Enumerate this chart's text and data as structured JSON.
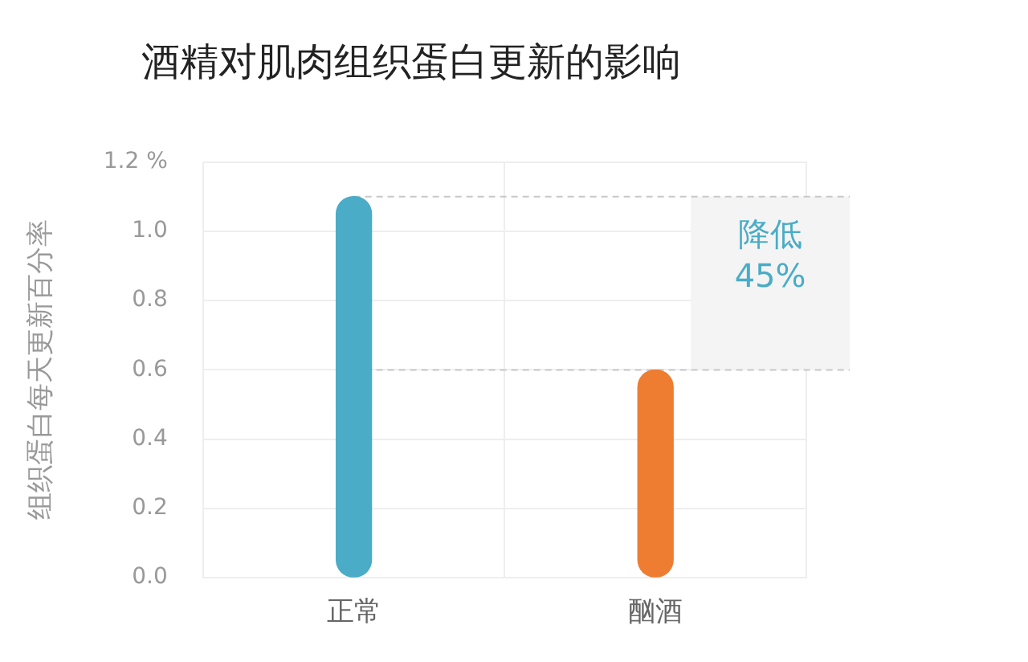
{
  "chart_data": {
    "type": "bar",
    "title": "酒精对肌肉组织蛋白更新的影响",
    "ylabel": "组织蛋白每天更新百分率",
    "categories": [
      "正常",
      "酗酒"
    ],
    "values": [
      1.1,
      0.6
    ],
    "colors": [
      "#4aacc6",
      "#ee7d31"
    ],
    "ylim": [
      0,
      1.2
    ],
    "yticks": [
      {
        "value": 0,
        "label": "0.0"
      },
      {
        "value": 0.2,
        "label": "0.2"
      },
      {
        "value": 0.4,
        "label": "0.4"
      },
      {
        "value": 0.6,
        "label": "0.6"
      },
      {
        "value": 0.8,
        "label": "0.8"
      },
      {
        "value": 1,
        "label": "1.0"
      },
      {
        "value": 1.2,
        "label": "1.2 %"
      }
    ],
    "grid": true,
    "legend": false,
    "ref_lines": [
      {
        "axis": "y",
        "value": 1.1,
        "color": "#c8c8c8",
        "line_style": "dashed"
      },
      {
        "axis": "y",
        "value": 0.6,
        "color": "#c8c8c8",
        "line_style": "dashed"
      }
    ],
    "bands": [
      {
        "axis": "y",
        "from": 0.6,
        "to": 1.1,
        "label": "降低 45%",
        "color": "#f4f4f4"
      }
    ]
  }
}
